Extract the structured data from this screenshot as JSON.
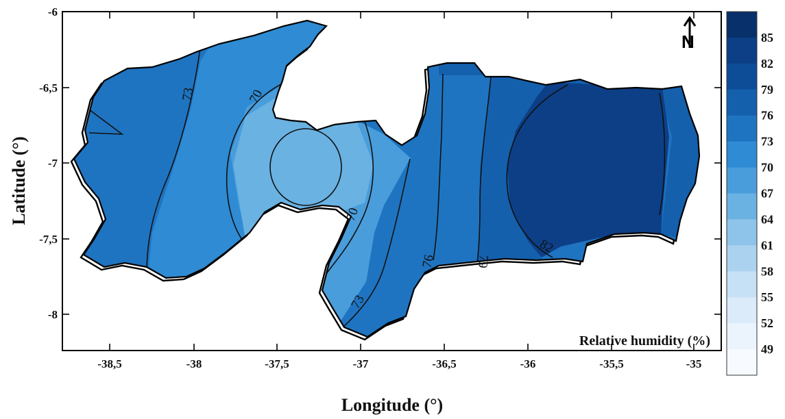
{
  "map": {
    "variable_label": "Relative humidity (%)",
    "xlabel": "Longitude (°)",
    "ylabel": "Latitude (°)",
    "x_ticks": [
      "-38,5",
      "-38",
      "-37,5",
      "-37",
      "-36,5",
      "-36",
      "-35,5",
      "-35"
    ],
    "y_ticks": [
      "-6",
      "-6,5",
      "-7",
      "-7,5",
      "-8"
    ],
    "xlim": [
      -38.85,
      -34.75
    ],
    "ylim": [
      -8.4,
      -6.0
    ],
    "north_arrow": "N",
    "contour_labels": [
      "73",
      "70",
      "70",
      "73",
      "76",
      "79",
      "82"
    ],
    "legend": {
      "levels": [
        "85",
        "82",
        "79",
        "76",
        "73",
        "70",
        "67",
        "64",
        "61",
        "58",
        "55",
        "52",
        "49"
      ],
      "colors": [
        "#08306b",
        "#0c3f86",
        "#0d4d98",
        "#1460ad",
        "#1f74c1",
        "#2f8bd3",
        "#4a9ddb",
        "#6ab2e2",
        "#8fc4ea",
        "#abd2ef",
        "#c6e0f5",
        "#dcebf9",
        "#ebf4fd",
        "#f7fbff"
      ]
    },
    "colors": {
      "outline": "#000000",
      "contour": "#111111",
      "background": "#ffffff"
    }
  }
}
